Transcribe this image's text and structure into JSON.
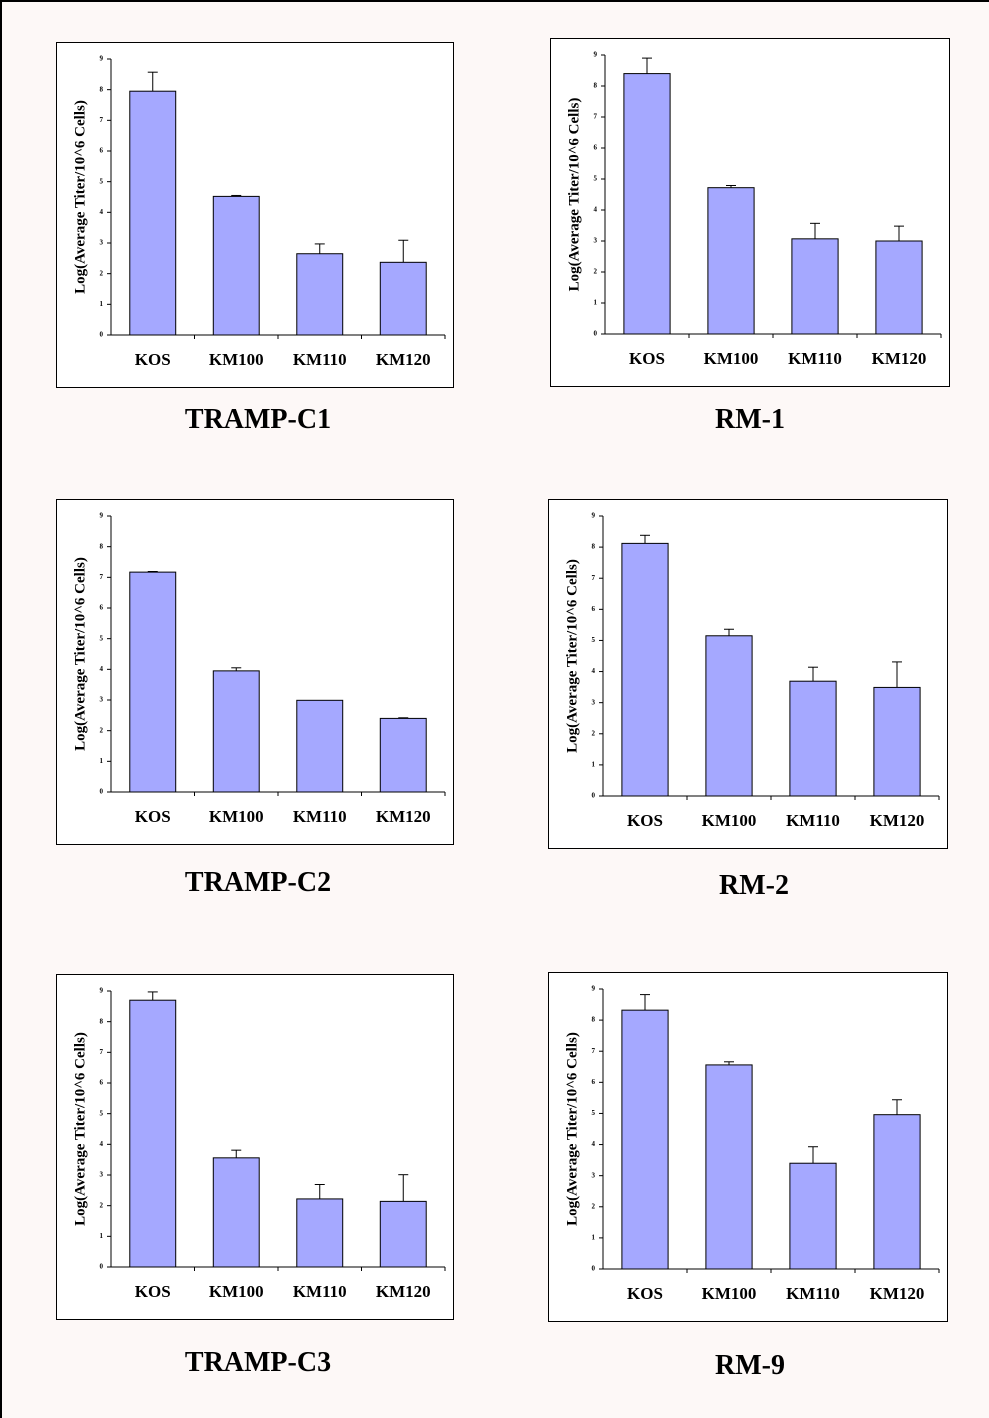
{
  "chart_data": [
    {
      "type": "bar",
      "title": "TRAMP-C1",
      "ylabel": "Log(Average Titer/10^6 Cells)",
      "categories": [
        "KOS",
        "KM100",
        "KM110",
        "KM120"
      ],
      "values": [
        7.95,
        4.52,
        2.65,
        2.37
      ],
      "errors": [
        0.62,
        0.03,
        0.32,
        0.72
      ],
      "ylim": [
        0,
        9
      ],
      "yticks": [
        "0",
        "1",
        "2",
        "3",
        "4",
        "5",
        "6",
        "7",
        "8",
        "9"
      ],
      "grid": false,
      "bar_color": "#a5a8ff"
    },
    {
      "type": "bar",
      "title": "RM-1",
      "ylabel": "Log(Average Titer/10^6 Cells)",
      "categories": [
        "KOS",
        "KM100",
        "KM110",
        "KM120"
      ],
      "values": [
        8.4,
        4.72,
        3.07,
        3.0
      ],
      "errors": [
        0.5,
        0.07,
        0.5,
        0.48
      ],
      "ylim": [
        0,
        9
      ],
      "yticks": [
        "0",
        "1",
        "2",
        "3",
        "4",
        "5",
        "6",
        "7",
        "8",
        "9"
      ],
      "grid": false,
      "bar_color": "#a5a8ff"
    },
    {
      "type": "bar",
      "title": "TRAMP-C2",
      "ylabel": "Log(Average Titer/10^6 Cells)",
      "categories": [
        "KOS",
        "KM100",
        "KM110",
        "KM120"
      ],
      "values": [
        7.17,
        3.95,
        2.99,
        2.4
      ],
      "errors": [
        0.02,
        0.1,
        0.0,
        0.02
      ],
      "ylim": [
        0,
        9
      ],
      "yticks": [
        "0",
        "1",
        "2",
        "3",
        "4",
        "5",
        "6",
        "7",
        "8",
        "9"
      ],
      "grid": false,
      "bar_color": "#a5a8ff"
    },
    {
      "type": "bar",
      "title": "RM-2",
      "ylabel": "Log(Average Titer/10^6 Cells)",
      "categories": [
        "KOS",
        "KM100",
        "KM110",
        "KM120"
      ],
      "values": [
        8.12,
        5.15,
        3.69,
        3.49
      ],
      "errors": [
        0.26,
        0.21,
        0.45,
        0.82
      ],
      "ylim": [
        0,
        9
      ],
      "yticks": [
        "0",
        "1",
        "2",
        "3",
        "4",
        "5",
        "6",
        "7",
        "8",
        "9"
      ],
      "grid": false,
      "bar_color": "#a5a8ff"
    },
    {
      "type": "bar",
      "title": "TRAMP-C3",
      "ylabel": "Log(Average Titer/10^6 Cells)",
      "categories": [
        "KOS",
        "KM100",
        "KM110",
        "KM120"
      ],
      "values": [
        8.7,
        3.56,
        2.22,
        2.14
      ],
      "errors": [
        0.27,
        0.25,
        0.47,
        0.87
      ],
      "ylim": [
        0,
        9
      ],
      "yticks": [
        "0",
        "1",
        "2",
        "3",
        "4",
        "5",
        "6",
        "7",
        "8",
        "9"
      ],
      "grid": false,
      "bar_color": "#a5a8ff"
    },
    {
      "type": "bar",
      "title": "RM-9",
      "ylabel": "Log(Average Titer/10^6 Cells)",
      "categories": [
        "KOS",
        "KM100",
        "KM110",
        "KM120"
      ],
      "values": [
        8.32,
        6.56,
        3.4,
        4.96
      ],
      "errors": [
        0.5,
        0.1,
        0.53,
        0.48
      ],
      "ylim": [
        0,
        9
      ],
      "yticks": [
        "0",
        "1",
        "2",
        "3",
        "4",
        "5",
        "6",
        "7",
        "8",
        "9"
      ],
      "grid": false,
      "bar_color": "#a5a8ff"
    }
  ]
}
